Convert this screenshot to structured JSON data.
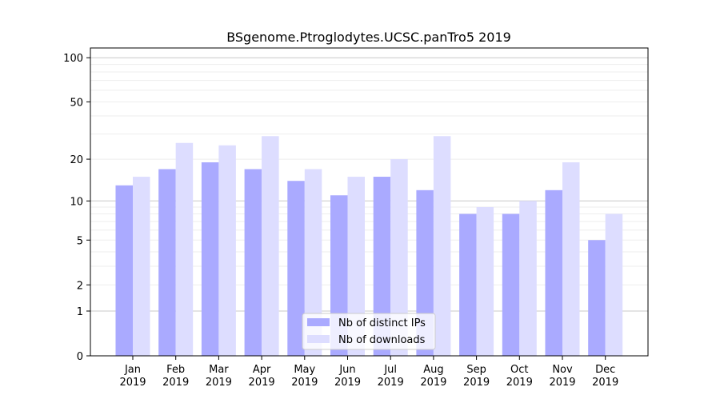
{
  "chart_data": {
    "type": "bar",
    "title": "BSgenome.Ptroglodytes.UCSC.panTro5 2019",
    "xlabel": "",
    "ylabel": "",
    "yscale": "log(1+y)",
    "ylim": [
      0,
      110
    ],
    "yticks": [
      0,
      1,
      2,
      5,
      10,
      20,
      50,
      100
    ],
    "grid": true,
    "legend_position": "bottom-center",
    "categories": [
      "Jan\n2019",
      "Feb\n2019",
      "Mar\n2019",
      "Apr\n2019",
      "May\n2019",
      "Jun\n2019",
      "Jul\n2019",
      "Aug\n2019",
      "Sep\n2019",
      "Oct\n2019",
      "Nov\n2019",
      "Dec\n2019"
    ],
    "series": [
      {
        "name": "Nb of distinct IPs",
        "color": "#aaaaff",
        "values": [
          13,
          17,
          19,
          17,
          14,
          11,
          15,
          12,
          8,
          8,
          12,
          5
        ]
      },
      {
        "name": "Nb of downloads",
        "color": "#ddddff",
        "values": [
          15,
          26,
          25,
          29,
          17,
          15,
          20,
          29,
          9,
          10,
          19,
          8
        ]
      }
    ]
  }
}
